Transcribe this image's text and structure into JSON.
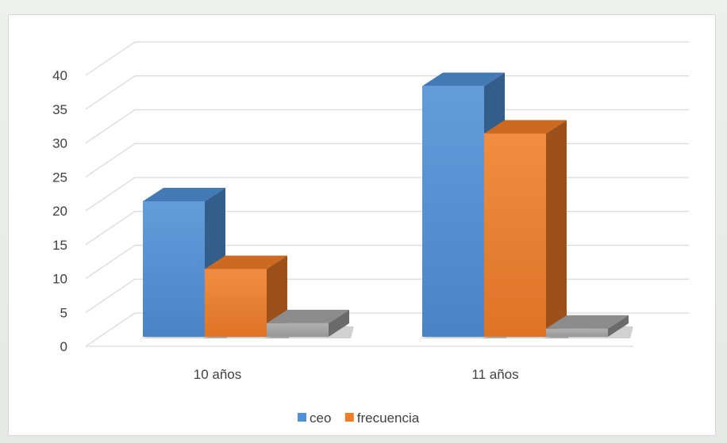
{
  "chart_data": {
    "type": "bar",
    "style": "3d-clustered-column",
    "categories": [
      "10 años",
      "11 años"
    ],
    "series": [
      {
        "name": "ceo",
        "values": [
          20,
          37
        ],
        "color": "#4f8fd6"
      },
      {
        "name": "frecuencia",
        "values": [
          10,
          30
        ],
        "color": "#f07d28"
      },
      {
        "name": "",
        "values": [
          2,
          1.2
        ],
        "color": "#a5a5a5"
      }
    ],
    "yticks": [
      0,
      5,
      10,
      15,
      20,
      25,
      30,
      35,
      40
    ],
    "ylim": [
      0,
      40
    ],
    "grid": true,
    "legend": "bottom",
    "title": "",
    "xlabel": "",
    "ylabel": ""
  }
}
